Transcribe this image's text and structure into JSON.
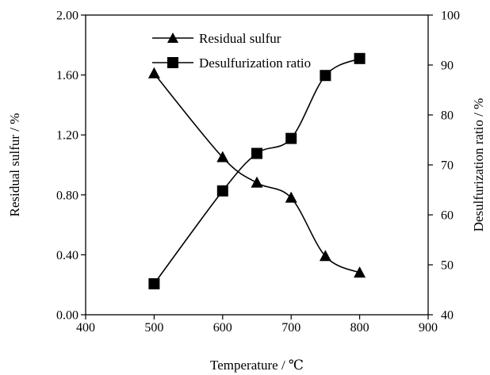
{
  "chart_data": {
    "type": "line",
    "title": "",
    "xlabel": "Temperature / ℃",
    "ylabel_left": "Residual sulfur / %",
    "ylabel_right": "Desulfurization ratio / %",
    "xlim": [
      400,
      900
    ],
    "x_ticks": [
      "400",
      "500",
      "600",
      "700",
      "800",
      "900"
    ],
    "ylim_left": [
      0,
      2.0
    ],
    "y_ticks_left": [
      "0.00",
      "0.40",
      "0.80",
      "1.20",
      "1.60",
      "2.00"
    ],
    "ylim_right": [
      40,
      100
    ],
    "y_ticks_right": [
      "40",
      "50",
      "60",
      "70",
      "80",
      "90",
      "100"
    ],
    "grid": false,
    "legend_position": "top-center",
    "x": [
      500,
      600,
      650,
      700,
      750,
      800
    ],
    "series": [
      {
        "name": "Residual sulfur",
        "axis": "left",
        "marker": "triangle",
        "values": [
          1.61,
          1.05,
          0.88,
          0.78,
          0.39,
          0.28
        ]
      },
      {
        "name": "Desulfurization ratio",
        "axis": "right",
        "marker": "square",
        "values": [
          46.2,
          64.8,
          72.3,
          75.3,
          87.9,
          91.3
        ]
      }
    ],
    "colors": {
      "line": "#000000",
      "background": "#ffffff"
    }
  }
}
